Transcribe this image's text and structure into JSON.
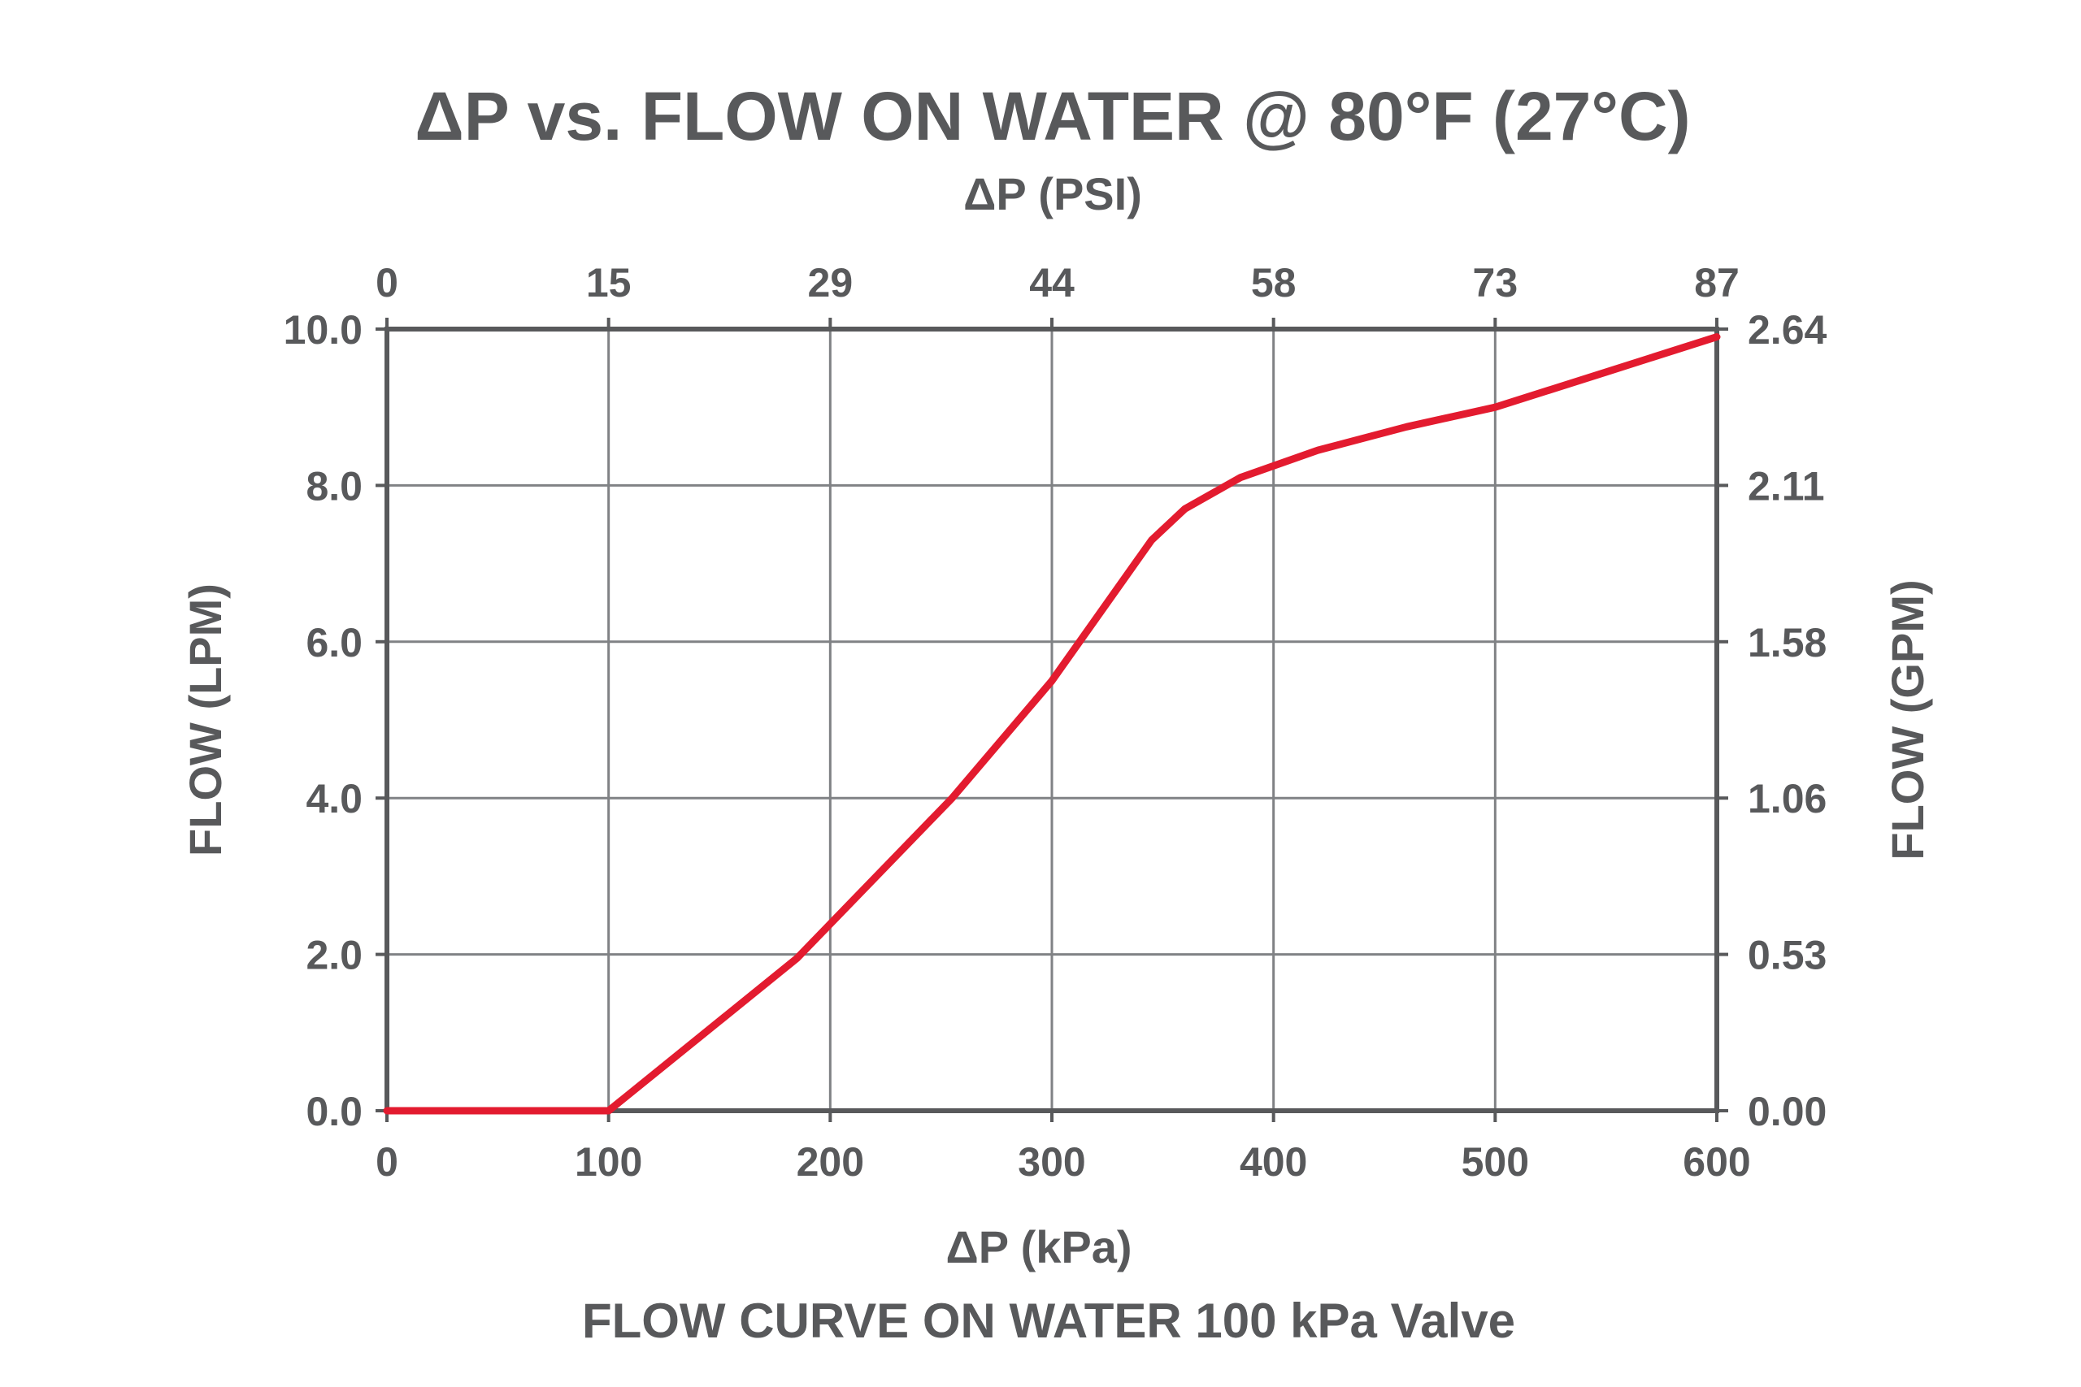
{
  "chart_data": {
    "type": "line",
    "title": "ΔP vs. FLOW ON WATER @ 80°F (27°C)",
    "top_axis_label": "ΔP (PSI)",
    "top_ticks": [
      "0",
      "15",
      "29",
      "44",
      "58",
      "73",
      "87"
    ],
    "xlabel": "ΔP (kPa)",
    "x_ticks": [
      "0",
      "100",
      "200",
      "300",
      "400",
      "500",
      "600"
    ],
    "xlim": [
      0,
      600
    ],
    "ylabel": "FLOW (LPM)",
    "y_ticks": [
      "0.0",
      "2.0",
      "4.0",
      "6.0",
      "8.0",
      "10.0"
    ],
    "ylim": [
      0,
      10
    ],
    "y2label": "FLOW (GPM)",
    "y2_ticks": [
      "0.00",
      "0.53",
      "1.06",
      "1.58",
      "2.11",
      "2.64"
    ],
    "caption": "FLOW CURVE ON WATER 100 kPa Valve",
    "grid": true,
    "series_color": "#e31b2f",
    "series": [
      {
        "x": [
          0,
          100,
          185,
          255,
          300,
          345,
          360,
          385,
          420,
          460,
          500,
          550,
          600
        ],
        "y": [
          0.0,
          0.0,
          1.95,
          4.0,
          5.5,
          7.3,
          7.7,
          8.1,
          8.45,
          8.75,
          9.0,
          9.45,
          9.9
        ]
      }
    ]
  }
}
